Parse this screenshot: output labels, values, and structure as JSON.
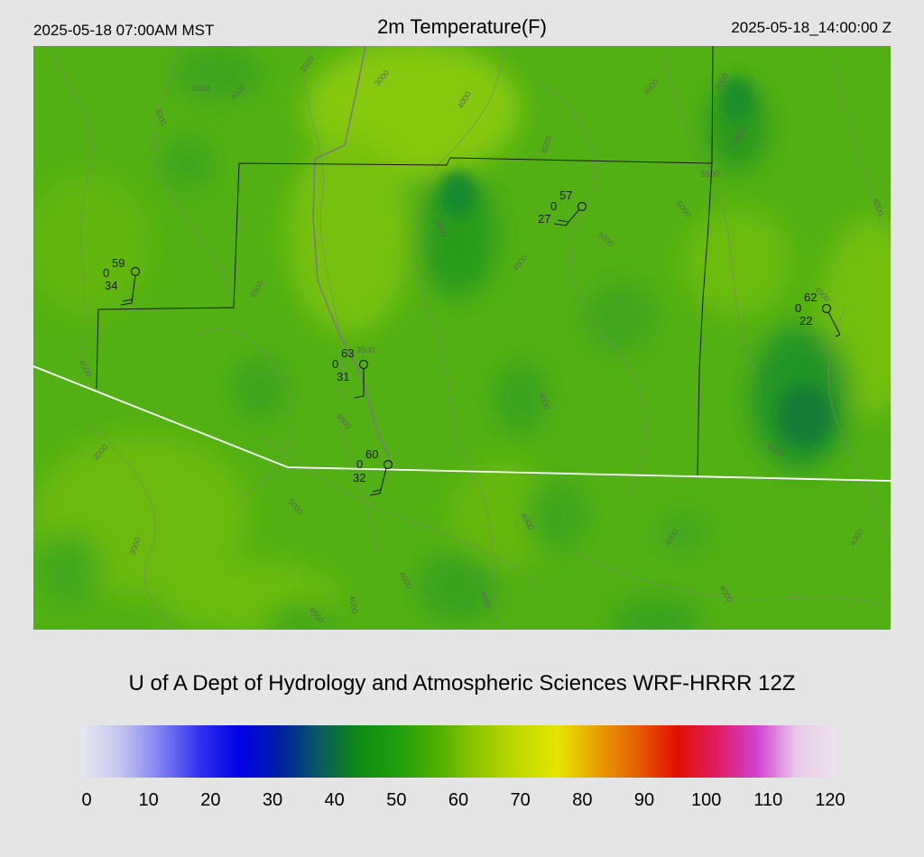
{
  "header": {
    "local_time": "2025-05-18 07:00AM MST",
    "title": "2m Temperature(F)",
    "utc_time": "2025-05-18_14:00:00 Z"
  },
  "footer": {
    "credit": "U of A Dept of Hydrology and Atmospheric Sciences WRF-HRRR 12Z"
  },
  "colorbar": {
    "labels": [
      "0",
      "10",
      "20",
      "30",
      "40",
      "50",
      "60",
      "70",
      "80",
      "90",
      "100",
      "110",
      "120"
    ],
    "stops": [
      "#e8e8f2",
      "#c4c4ee",
      "#8080f0",
      "#3030ee",
      "#0000e6",
      "#0020a0",
      "#0a5a60",
      "#108a10",
      "#20a010",
      "#50b000",
      "#90c800",
      "#c0d800",
      "#e6e600",
      "#e6a000",
      "#e46000",
      "#e21000",
      "#e01c60",
      "#d040d0",
      "#e8c8e8",
      "#eee4ee"
    ]
  },
  "map": {
    "contour_labels": [
      "3500",
      "3000",
      "4000",
      "4500",
      "5000",
      "5500"
    ],
    "stations": [
      {
        "id": "st1",
        "temp": "59",
        "cloud": "0",
        "dewpoint": "34"
      },
      {
        "id": "st2",
        "temp": "57",
        "cloud": "0",
        "dewpoint": "27"
      },
      {
        "id": "st3",
        "temp": "63",
        "cloud": "0",
        "dewpoint": "31"
      },
      {
        "id": "st4",
        "temp": "60",
        "cloud": "0",
        "dewpoint": "32"
      },
      {
        "id": "st5",
        "temp": "62",
        "cloud": "0",
        "dewpoint": "22"
      }
    ]
  }
}
